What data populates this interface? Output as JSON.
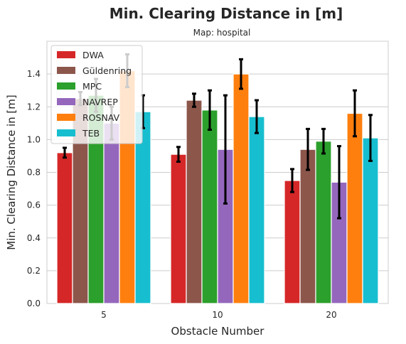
{
  "chart_data": {
    "type": "bar",
    "title": "Min. Clearing Distance in [m]",
    "subtitle": "Map: hospital",
    "xlabel": "Obstacle Number",
    "ylabel": "Min. Clearing Distance in [m]",
    "ylim": [
      0,
      1.6
    ],
    "yticks": [
      "0.0",
      "0.2",
      "0.4",
      "0.6",
      "0.8",
      "1.0",
      "1.2",
      "1.4"
    ],
    "categories": [
      "5",
      "10",
      "20"
    ],
    "grid": "horizontal",
    "legend_position": "top-left",
    "series": [
      {
        "name": "DWA",
        "color": "#d62728",
        "values": [
          0.92,
          0.91,
          0.75
        ],
        "errors": [
          0.03,
          0.045,
          0.07
        ]
      },
      {
        "name": "Güldenring",
        "color": "#8c564b",
        "values": [
          1.25,
          1.24,
          0.94
        ],
        "errors": [
          0.04,
          0.04,
          0.125
        ]
      },
      {
        "name": "MPC",
        "color": "#2ca02c",
        "values": [
          1.27,
          1.18,
          0.99
        ],
        "errors": [
          0.1,
          0.12,
          0.075
        ]
      },
      {
        "name": "NAVREP",
        "color": "#9467bd",
        "values": [
          1.1,
          0.94,
          0.74
        ],
        "errors": [
          0.1,
          0.33,
          0.22
        ]
      },
      {
        "name": "ROSNAV",
        "color": "#ff7f0e",
        "values": [
          1.42,
          1.4,
          1.16
        ],
        "errors": [
          0.1,
          0.09,
          0.14
        ]
      },
      {
        "name": "TEB",
        "color": "#17becf",
        "values": [
          1.17,
          1.14,
          1.01
        ],
        "errors": [
          0.1,
          0.1,
          0.14
        ]
      }
    ]
  }
}
